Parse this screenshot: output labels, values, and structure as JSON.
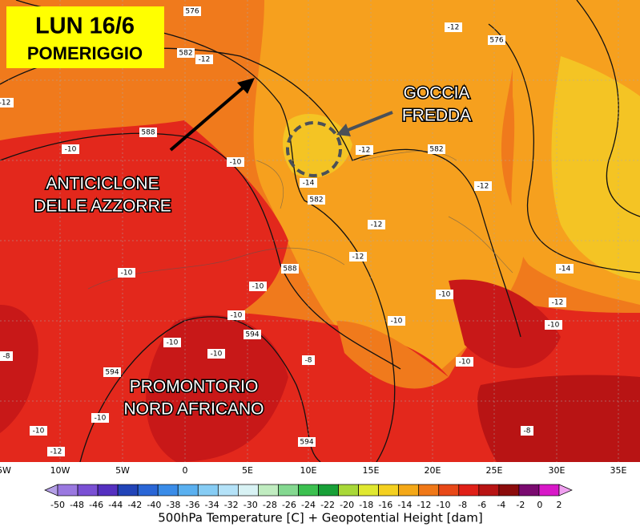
{
  "header": {
    "title": "LUN 16/6",
    "subtitle": "POMERIGGIO"
  },
  "annotations": [
    [
      "ANTICICLONE",
      "DELLE AZZORRE"
    ],
    [
      "GOCCIA",
      "FREDDA"
    ],
    [
      "PROMONTORIO",
      "NORD AFRICANO"
    ]
  ],
  "contour_labels": [
    "576",
    "-12",
    "576",
    "582",
    "-12",
    "-12",
    "588",
    "-10",
    "-10",
    "-12",
    "582",
    "-14",
    "582",
    "-12",
    "-12",
    "-12",
    "-10",
    "588",
    "-10",
    "-14",
    "-10",
    "-12",
    "-10",
    "-10",
    "-10",
    "-8",
    "-10",
    "594",
    "-10",
    "-8",
    "-10",
    "594",
    "-10",
    "-10",
    "-8",
    "594",
    "-12"
  ],
  "longitudes": [
    "5W",
    "10W",
    "5W",
    "0",
    "5E",
    "10E",
    "15E",
    "20E",
    "25E",
    "30E",
    "35E"
  ],
  "colorbar": {
    "labels": [
      "-50",
      "-48",
      "-46",
      "-44",
      "-42",
      "-40",
      "-38",
      "-36",
      "-34",
      "-32",
      "-30",
      "-28",
      "-26",
      "-24",
      "-22",
      "-20",
      "-18",
      "-16",
      "-14",
      "-12",
      "-10",
      "-8",
      "-6",
      "-4",
      "-2",
      "0",
      "2"
    ],
    "colors": [
      "#b49fe6",
      "#9a78e0",
      "#7a50d4",
      "#5530c0",
      "#2244b8",
      "#2a66d6",
      "#3a8ce8",
      "#5ab0f0",
      "#86ccf4",
      "#b4e2f8",
      "#d8f2f4",
      "#c0ecc0",
      "#84d890",
      "#3cc050",
      "#18a038",
      "#a8d838",
      "#e0e830",
      "#f4d020",
      "#f4a818",
      "#f07818",
      "#e84818",
      "#e02018",
      "#b81414",
      "#8c0c0c",
      "#7a0a70",
      "#d818c8",
      "#f0a0f0"
    ]
  },
  "caption": "500hPa Temperature [C] + Geopotential Height [dam]"
}
